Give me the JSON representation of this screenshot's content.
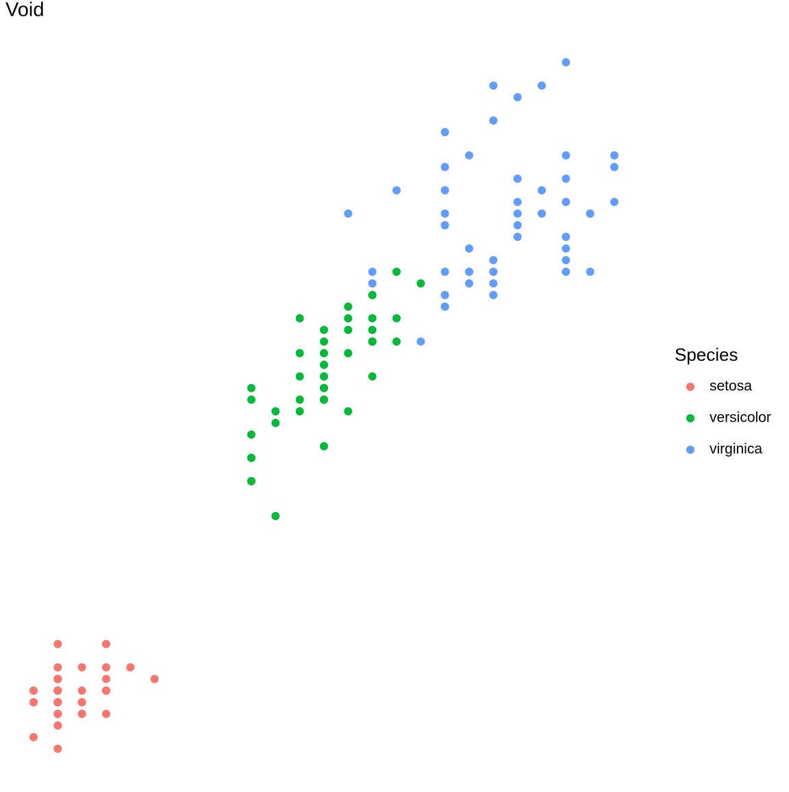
{
  "chart_data": {
    "type": "scatter",
    "title": "Void",
    "legend_title": "Species",
    "legend_position": "right",
    "xlim": [
      -0.02,
      2.62
    ],
    "ylim": [
      0.705,
      7.195
    ],
    "series": [
      {
        "name": "setosa",
        "color": "#F8766D",
        "x": [
          0.2,
          0.2,
          0.2,
          0.2,
          0.2,
          0.4,
          0.3,
          0.2,
          0.2,
          0.1,
          0.2,
          0.2,
          0.1,
          0.1,
          0.2,
          0.4,
          0.4,
          0.3,
          0.3,
          0.3,
          0.2,
          0.4,
          0.2,
          0.5,
          0.2,
          0.2,
          0.4,
          0.2,
          0.2,
          0.2,
          0.2,
          0.4,
          0.1,
          0.2,
          0.2,
          0.2,
          0.2,
          0.1,
          0.2,
          0.2,
          0.3,
          0.3,
          0.2,
          0.6,
          0.4,
          0.3,
          0.2,
          0.2,
          0.2,
          0.2
        ],
        "values": [
          1.4,
          1.4,
          1.3,
          1.5,
          1.4,
          1.7,
          1.4,
          1.5,
          1.4,
          1.5,
          1.5,
          1.6,
          1.4,
          1.1,
          1.2,
          1.5,
          1.3,
          1.4,
          1.7,
          1.5,
          1.7,
          1.5,
          1.0,
          1.7,
          1.9,
          1.6,
          1.6,
          1.5,
          1.4,
          1.6,
          1.6,
          1.5,
          1.5,
          1.4,
          1.5,
          1.2,
          1.3,
          1.4,
          1.3,
          1.5,
          1.3,
          1.3,
          1.3,
          1.6,
          1.9,
          1.4,
          1.6,
          1.4,
          1.5,
          1.4
        ]
      },
      {
        "name": "versicolor",
        "color": "#00BA38",
        "x": [
          1.4,
          1.5,
          1.5,
          1.3,
          1.5,
          1.3,
          1.6,
          1.0,
          1.3,
          1.4,
          1.0,
          1.5,
          1.0,
          1.4,
          1.3,
          1.4,
          1.5,
          1.0,
          1.5,
          1.1,
          1.8,
          1.3,
          1.5,
          1.2,
          1.3,
          1.4,
          1.4,
          1.7,
          1.5,
          1.0,
          1.1,
          1.0,
          1.2,
          1.6,
          1.5,
          1.6,
          1.5,
          1.3,
          1.3,
          1.3,
          1.2,
          1.4,
          1.2,
          1.0,
          1.3,
          1.2,
          1.3,
          1.3,
          1.1,
          1.3
        ],
        "values": [
          4.7,
          4.5,
          4.9,
          4.0,
          4.6,
          4.5,
          4.7,
          3.3,
          4.6,
          3.9,
          3.5,
          4.2,
          4.0,
          4.7,
          3.6,
          4.4,
          4.5,
          4.1,
          4.5,
          3.9,
          4.8,
          4.0,
          4.9,
          4.7,
          4.3,
          4.4,
          4.8,
          5.0,
          4.5,
          3.5,
          3.8,
          3.7,
          3.9,
          5.1,
          4.5,
          4.5,
          4.7,
          4.4,
          4.1,
          4.0,
          4.4,
          4.6,
          4.0,
          3.3,
          4.2,
          4.2,
          4.2,
          4.3,
          3.0,
          4.1
        ]
      },
      {
        "name": "virginica",
        "color": "#619CFF",
        "x": [
          2.5,
          1.9,
          2.1,
          1.8,
          2.2,
          2.1,
          1.7,
          1.8,
          1.8,
          2.5,
          2.0,
          1.9,
          2.1,
          2.0,
          2.4,
          2.3,
          1.8,
          2.2,
          2.3,
          1.5,
          2.3,
          2.0,
          2.0,
          1.8,
          2.1,
          1.8,
          1.8,
          1.8,
          2.1,
          1.6,
          1.9,
          2.0,
          2.2,
          1.5,
          1.4,
          2.3,
          2.4,
          1.8,
          1.8,
          2.1,
          2.4,
          2.3,
          1.9,
          2.3,
          2.5,
          2.3,
          1.9,
          2.0,
          2.3,
          1.8
        ],
        "values": [
          6.0,
          5.1,
          5.9,
          5.6,
          5.8,
          6.6,
          4.5,
          6.3,
          5.8,
          6.1,
          5.1,
          5.3,
          5.5,
          5.0,
          5.1,
          5.3,
          5.5,
          6.7,
          6.9,
          5.0,
          5.7,
          4.9,
          6.7,
          4.9,
          5.7,
          6.0,
          4.8,
          4.9,
          5.6,
          5.8,
          6.1,
          6.4,
          5.6,
          5.1,
          5.6,
          6.1,
          5.6,
          5.5,
          4.8,
          5.4,
          5.6,
          5.1,
          5.1,
          5.9,
          5.7,
          5.2,
          5.0,
          5.2,
          5.4,
          5.1
        ]
      }
    ]
  }
}
